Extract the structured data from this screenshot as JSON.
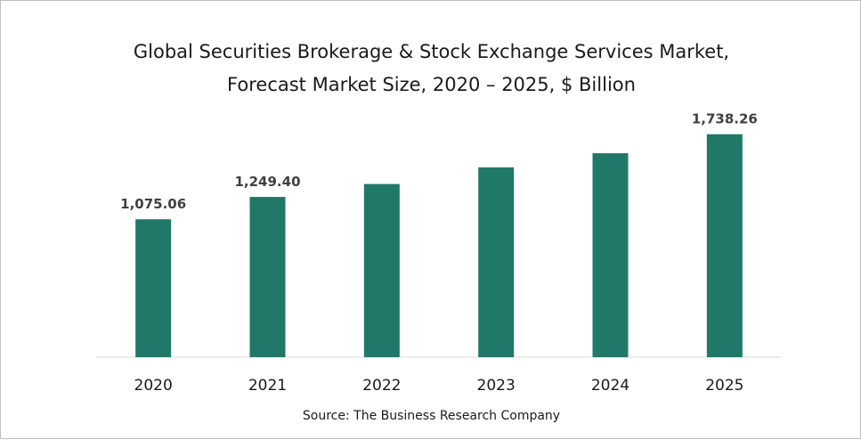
{
  "chart_data": {
    "type": "bar",
    "title_lines": [
      "Global Securities Brokerage & Stock Exchange Services Market,",
      "Forecast Market Size, 2020 – 2025, $ Billion"
    ],
    "categories": [
      "2020",
      "2021",
      "2022",
      "2023",
      "2024",
      "2025"
    ],
    "values": [
      1075.06,
      1249.4,
      1350,
      1480,
      1590,
      1738.26
    ],
    "data_labels": [
      "1,075.06",
      "1,249.40",
      "",
      "",
      "",
      "1,738.26"
    ],
    "xlabel": "",
    "ylabel": "",
    "ylim": [
      0,
      2000
    ],
    "grid": false,
    "bar_color": "#207868",
    "source": "Source: The Business Research Company"
  }
}
